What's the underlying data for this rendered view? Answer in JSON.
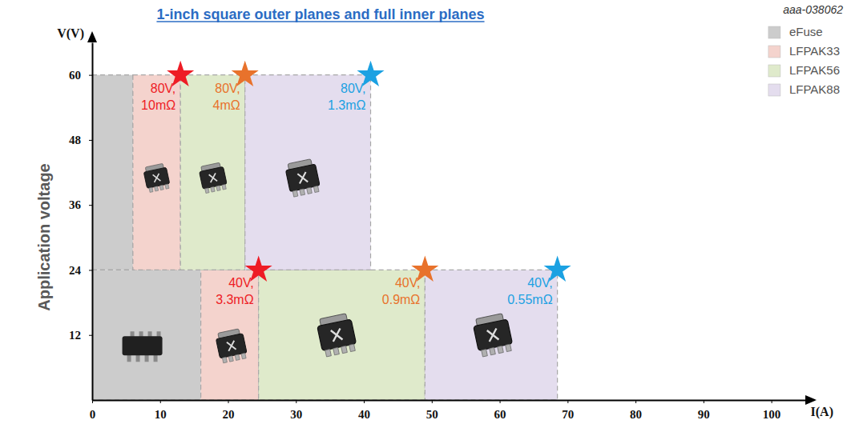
{
  "chart_data": {
    "type": "range",
    "title": "1-inch square outer planes and full inner planes",
    "figure_id": "aaa-038062",
    "x_label": "I(A)",
    "y_unit_label": "V(V)",
    "y_label": "Application voltage",
    "xlim": [
      0,
      105
    ],
    "xticks": [
      0,
      10,
      20,
      30,
      40,
      50,
      60,
      70,
      80,
      90,
      100
    ],
    "ylim": [
      0,
      66
    ],
    "yticks": [
      12,
      24,
      36,
      48,
      60
    ],
    "grid": false,
    "legend": "top-right",
    "series": [
      {
        "name": "eFuse",
        "color": "#cccccc",
        "x_start": [
          0,
          0
        ],
        "x_end": [
          6,
          16
        ],
        "y_start": [
          24,
          0
        ],
        "y_end": [
          60,
          24
        ]
      },
      {
        "name": "LFPAK33",
        "color": "#f4d3cd",
        "x_start": [
          6,
          16
        ],
        "x_end": [
          13,
          24.5
        ],
        "y_start": [
          24,
          0
        ],
        "y_end": [
          60,
          24
        ]
      },
      {
        "name": "LFPAK56",
        "color": "#dfeacb",
        "x_start": [
          13,
          24.5
        ],
        "x_end": [
          22.5,
          49
        ],
        "y_start": [
          24,
          0
        ],
        "y_end": [
          60,
          24
        ]
      },
      {
        "name": "LFPAK88",
        "color": "#e4ddee",
        "x_start": [
          22.5,
          49
        ],
        "x_end": [
          41,
          68.5
        ],
        "y_start": [
          24,
          0
        ],
        "y_end": [
          60,
          24
        ]
      }
    ],
    "annotations": [
      {
        "x": 13,
        "y": 60,
        "text": [
          "80V,",
          "10mΩ"
        ],
        "color": "#ee1c25"
      },
      {
        "x": 22.5,
        "y": 60,
        "text": [
          "80V,",
          "4mΩ"
        ],
        "color": "#e8722c"
      },
      {
        "x": 41,
        "y": 60,
        "text": [
          "80V,",
          "1.3mΩ"
        ],
        "color": "#1ba1e2"
      },
      {
        "x": 24.5,
        "y": 24,
        "text": [
          "40V,",
          "3.3mΩ"
        ],
        "color": "#ee1c25"
      },
      {
        "x": 49,
        "y": 24,
        "text": [
          "40V,",
          "0.9mΩ"
        ],
        "color": "#e8722c"
      },
      {
        "x": 68.5,
        "y": 24,
        "text": [
          "40V,",
          "0.55mΩ"
        ],
        "color": "#1ba1e2"
      }
    ]
  }
}
